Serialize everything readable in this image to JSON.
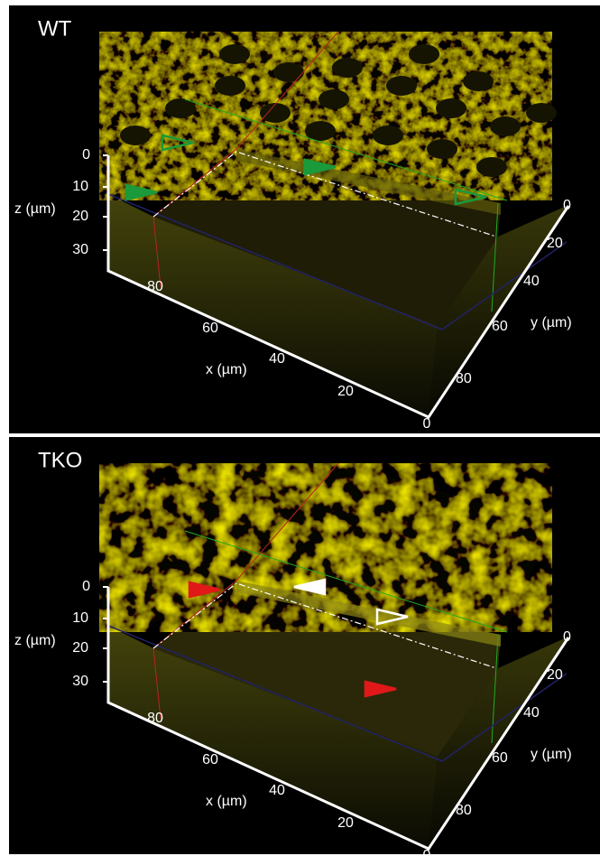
{
  "panels": [
    {
      "label": "WT",
      "z_axis": {
        "label": "z (µm)",
        "ticks": [
          "0",
          "10",
          "20",
          "30"
        ]
      },
      "x_axis": {
        "label": "x (µm)",
        "ticks": [
          "80",
          "60",
          "40",
          "20",
          "0"
        ]
      },
      "y_axis": {
        "label": "y (µm)",
        "ticks": [
          "0",
          "20",
          "40",
          "60",
          "80"
        ]
      }
    },
    {
      "label": "TKO",
      "z_axis": {
        "label": "z (µm)",
        "ticks": [
          "0",
          "10",
          "20",
          "30"
        ]
      },
      "x_axis": {
        "label": "x (µm)",
        "ticks": [
          "80",
          "60",
          "40",
          "20",
          "0"
        ]
      },
      "y_axis": {
        "label": "y (µm)",
        "ticks": [
          "0",
          "20",
          "40",
          "60",
          "80"
        ]
      }
    }
  ]
}
